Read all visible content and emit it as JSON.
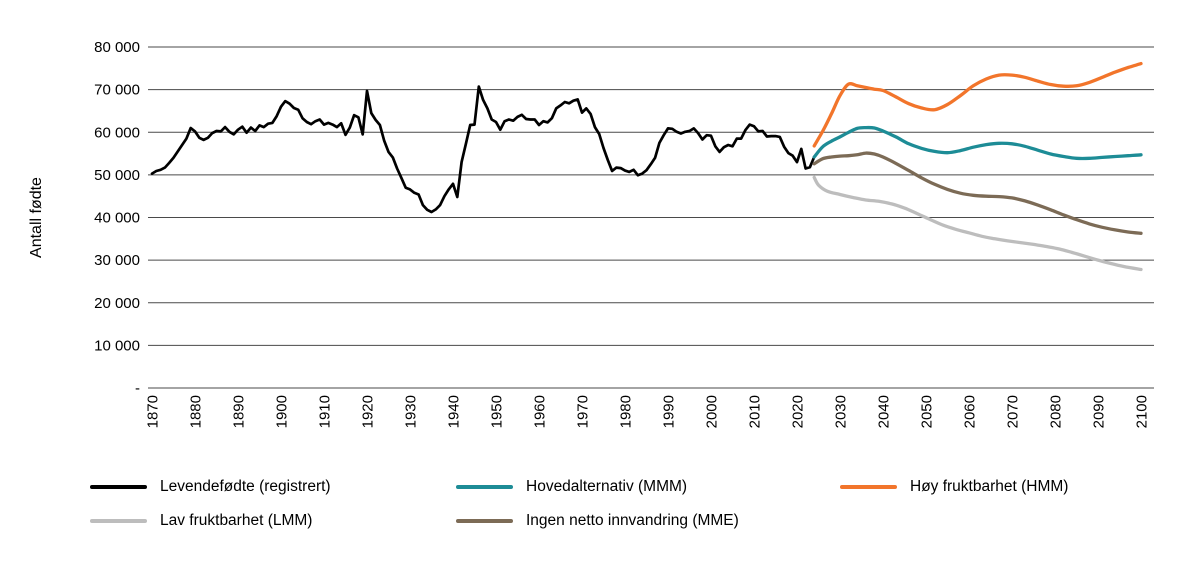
{
  "figure": {
    "background": "#ffffff",
    "text_color": "#000000",
    "gridline_color": "#4a4a4a"
  },
  "chart_data": {
    "type": "line",
    "title": "",
    "xlabel": "",
    "ylabel": "Antall fødte",
    "ylim": [
      0,
      80000
    ],
    "xlim": [
      1870,
      2100
    ],
    "grid": "horizontal",
    "legend_position": "bottom",
    "y_ticks": [
      {
        "value": 0,
        "label": "-"
      },
      {
        "value": 10000,
        "label": "10 000"
      },
      {
        "value": 20000,
        "label": "20 000"
      },
      {
        "value": 30000,
        "label": "30 000"
      },
      {
        "value": 40000,
        "label": "40 000"
      },
      {
        "value": 50000,
        "label": "50 000"
      },
      {
        "value": 60000,
        "label": "60 000"
      },
      {
        "value": 70000,
        "label": "70 000"
      },
      {
        "value": 80000,
        "label": "80 000"
      }
    ],
    "x_ticks": [
      1870,
      1880,
      1890,
      1900,
      1910,
      1920,
      1930,
      1940,
      1950,
      1960,
      1970,
      1980,
      1990,
      2000,
      2010,
      2020,
      2030,
      2040,
      2050,
      2060,
      2070,
      2080,
      2090,
      2100
    ],
    "series": [
      {
        "name": "Levendefødte (registrert)",
        "color": "#000000",
        "width": 2.7,
        "smooth": false,
        "start_year": 1870,
        "values": [
          50300,
          50900,
          51200,
          51700,
          52800,
          54000,
          55500,
          57000,
          58500,
          61000,
          60200,
          58700,
          58200,
          58700,
          59800,
          60300,
          60200,
          61200,
          60100,
          59500,
          60600,
          61300,
          59900,
          61100,
          60300,
          61600,
          61200,
          62000,
          62200,
          63800,
          66000,
          67300,
          66700,
          65700,
          65300,
          63300,
          62400,
          61900,
          62600,
          63000,
          61800,
          62200,
          61800,
          61200,
          62100,
          59400,
          61100,
          64000,
          63500,
          59500,
          69700,
          64500,
          62900,
          61700,
          58000,
          55400,
          54100,
          51500,
          49300,
          47000,
          46600,
          45800,
          45400,
          42900,
          41800,
          41300,
          41900,
          42900,
          45000,
          46600,
          47900,
          44800,
          53000,
          57300,
          61700,
          61800,
          70700,
          67600,
          65600,
          63000,
          62400,
          60600,
          62600,
          63000,
          62700,
          63600,
          64100,
          63100,
          63000,
          63000,
          61700,
          62600,
          62300,
          63300,
          65600,
          66300,
          67100,
          66800,
          67400,
          67700,
          64600,
          65600,
          64300,
          61200,
          59600,
          56300,
          53500,
          50900,
          51700,
          51600,
          51000,
          50700,
          51200,
          49900,
          50300,
          51100,
          52500,
          54000,
          57500,
          59300,
          60900,
          60800,
          60100,
          59700,
          60100,
          60300,
          60900,
          59800,
          58300,
          59300,
          59200,
          56700,
          55400,
          56500,
          57000,
          56700,
          58500,
          58500,
          60500,
          61800,
          61400,
          60200,
          60300,
          59000,
          59100,
          59100,
          58900,
          56600,
          55100,
          54500,
          53000,
          56100,
          51500,
          51800,
          54200
        ]
      },
      {
        "name": "Hovedalternativ (MMM)",
        "color": "#1D8C96",
        "width": 3.3,
        "smooth": true,
        "points": [
          [
            2024,
            54200
          ],
          [
            2026,
            56600
          ],
          [
            2028,
            57900
          ],
          [
            2030,
            58900
          ],
          [
            2032,
            60000
          ],
          [
            2034,
            60900
          ],
          [
            2036,
            61100
          ],
          [
            2038,
            61000
          ],
          [
            2040,
            60300
          ],
          [
            2043,
            58900
          ],
          [
            2046,
            57300
          ],
          [
            2049,
            56200
          ],
          [
            2052,
            55500
          ],
          [
            2055,
            55200
          ],
          [
            2058,
            55700
          ],
          [
            2061,
            56500
          ],
          [
            2064,
            57100
          ],
          [
            2067,
            57400
          ],
          [
            2070,
            57300
          ],
          [
            2073,
            56700
          ],
          [
            2076,
            55800
          ],
          [
            2079,
            54900
          ],
          [
            2082,
            54300
          ],
          [
            2085,
            53900
          ],
          [
            2088,
            53900
          ],
          [
            2091,
            54100
          ],
          [
            2094,
            54300
          ],
          [
            2097,
            54500
          ],
          [
            2100,
            54700
          ]
        ]
      },
      {
        "name": "Høy fruktbarhet (HMM)",
        "color": "#F2752B",
        "width": 3.3,
        "smooth": true,
        "points": [
          [
            2024,
            56800
          ],
          [
            2026,
            60300
          ],
          [
            2028,
            64300
          ],
          [
            2030,
            68600
          ],
          [
            2032,
            71300
          ],
          [
            2034,
            70900
          ],
          [
            2036,
            70500
          ],
          [
            2038,
            70100
          ],
          [
            2040,
            69800
          ],
          [
            2043,
            68300
          ],
          [
            2046,
            66700
          ],
          [
            2049,
            65700
          ],
          [
            2052,
            65300
          ],
          [
            2055,
            66500
          ],
          [
            2058,
            68600
          ],
          [
            2061,
            70900
          ],
          [
            2064,
            72500
          ],
          [
            2067,
            73400
          ],
          [
            2070,
            73400
          ],
          [
            2073,
            72900
          ],
          [
            2076,
            72000
          ],
          [
            2079,
            71200
          ],
          [
            2082,
            70800
          ],
          [
            2085,
            70900
          ],
          [
            2088,
            71700
          ],
          [
            2091,
            72900
          ],
          [
            2094,
            74100
          ],
          [
            2097,
            75200
          ],
          [
            2100,
            76100
          ]
        ]
      },
      {
        "name": "Lav fruktbarhet (LMM)",
        "color": "#BDBDBD",
        "width": 3.3,
        "smooth": true,
        "points": [
          [
            2024,
            49400
          ],
          [
            2025,
            47600
          ],
          [
            2027,
            46200
          ],
          [
            2030,
            45400
          ],
          [
            2033,
            44700
          ],
          [
            2036,
            44100
          ],
          [
            2039,
            43800
          ],
          [
            2042,
            43200
          ],
          [
            2045,
            42200
          ],
          [
            2048,
            40900
          ],
          [
            2051,
            39500
          ],
          [
            2054,
            38200
          ],
          [
            2057,
            37200
          ],
          [
            2060,
            36400
          ],
          [
            2063,
            35600
          ],
          [
            2066,
            35000
          ],
          [
            2069,
            34500
          ],
          [
            2072,
            34100
          ],
          [
            2075,
            33700
          ],
          [
            2078,
            33200
          ],
          [
            2081,
            32600
          ],
          [
            2084,
            31800
          ],
          [
            2087,
            30900
          ],
          [
            2090,
            30000
          ],
          [
            2093,
            29200
          ],
          [
            2096,
            28500
          ],
          [
            2100,
            27800
          ]
        ]
      },
      {
        "name": "Ingen netto innvandring (MME)",
        "color": "#7C6B56",
        "width": 3.3,
        "smooth": true,
        "points": [
          [
            2024,
            52600
          ],
          [
            2026,
            53800
          ],
          [
            2028,
            54200
          ],
          [
            2030,
            54400
          ],
          [
            2032,
            54500
          ],
          [
            2034,
            54700
          ],
          [
            2036,
            55100
          ],
          [
            2038,
            54900
          ],
          [
            2040,
            54200
          ],
          [
            2043,
            52700
          ],
          [
            2046,
            51000
          ],
          [
            2049,
            49300
          ],
          [
            2052,
            47800
          ],
          [
            2055,
            46600
          ],
          [
            2058,
            45700
          ],
          [
            2061,
            45200
          ],
          [
            2064,
            45000
          ],
          [
            2067,
            44900
          ],
          [
            2070,
            44600
          ],
          [
            2073,
            43900
          ],
          [
            2076,
            42900
          ],
          [
            2079,
            41800
          ],
          [
            2082,
            40600
          ],
          [
            2085,
            39500
          ],
          [
            2088,
            38500
          ],
          [
            2091,
            37700
          ],
          [
            2094,
            37100
          ],
          [
            2097,
            36600
          ],
          [
            2100,
            36300
          ]
        ]
      }
    ]
  },
  "legend": {
    "rows": [
      {
        "items": [
          {
            "label": "Levendefødte (registrert)",
            "color": "#000000"
          },
          {
            "label": "Hovedalternativ (MMM)",
            "color": "#1D8C96"
          },
          {
            "label": "Høy fruktbarhet (HMM)",
            "color": "#F2752B"
          }
        ]
      },
      {
        "items": [
          {
            "label": "Lav fruktbarhet (LMM)",
            "color": "#BDBDBD"
          },
          {
            "label": "Ingen netto innvandring (MME)",
            "color": "#7C6B56"
          }
        ]
      }
    ]
  }
}
